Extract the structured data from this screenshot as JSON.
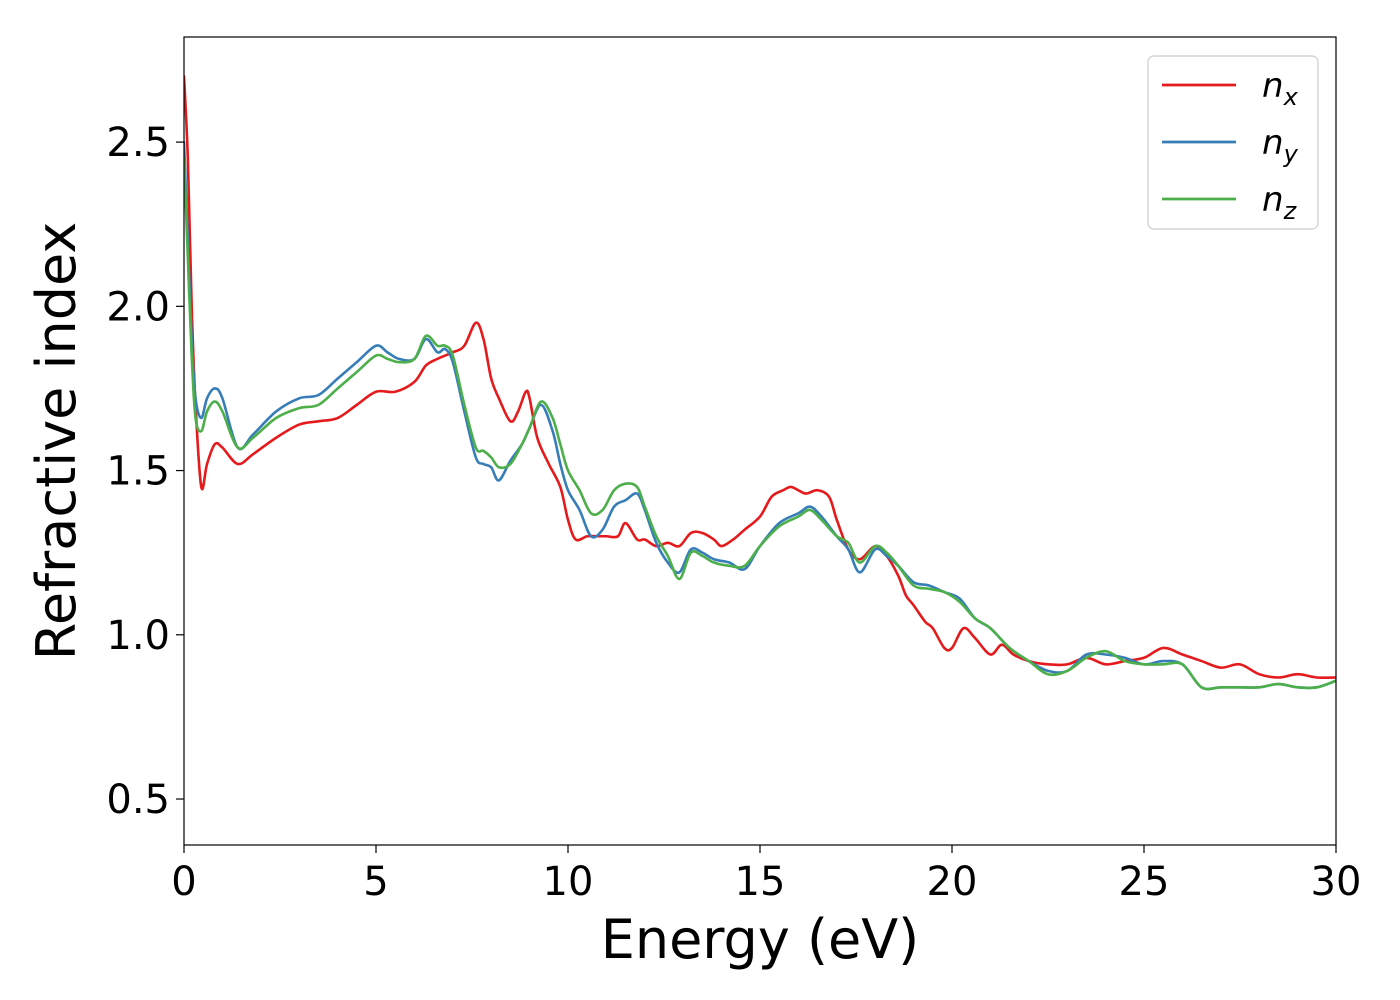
{
  "chart_data": {
    "type": "line",
    "xlabel": "Energy (eV)",
    "ylabel": "Refractive index",
    "xlim": [
      0,
      30
    ],
    "ylim": [
      0.36,
      2.82
    ],
    "xticks": [
      0,
      5,
      10,
      15,
      20,
      25,
      30
    ],
    "yticks": [
      0.5,
      1.0,
      1.5,
      2.0,
      2.5
    ],
    "xtick_labels": [
      "0",
      "5",
      "10",
      "15",
      "20",
      "25",
      "30"
    ],
    "ytick_labels": [
      "0.5",
      "1.0",
      "1.5",
      "2.0",
      "2.5"
    ],
    "grid": false,
    "legend_position": "top-right",
    "series": [
      {
        "name": "n",
        "subscript": "x",
        "color": "#e41a1c",
        "x": [
          0,
          0.1,
          0.2,
          0.3,
          0.45,
          0.6,
          0.8,
          1.0,
          1.4,
          1.8,
          2.4,
          3.0,
          3.5,
          4.0,
          4.5,
          5.0,
          5.5,
          6.0,
          6.3,
          6.6,
          7.0,
          7.3,
          7.6,
          7.8,
          8.0,
          8.2,
          8.5,
          8.7,
          8.9,
          9.0,
          9.2,
          9.5,
          9.8,
          10.0,
          10.2,
          10.5,
          10.8,
          11.0,
          11.3,
          11.5,
          11.8,
          12.0,
          12.3,
          12.6,
          12.9,
          13.2,
          13.5,
          13.8,
          14.0,
          14.3,
          14.6,
          15.0,
          15.3,
          15.6,
          15.8,
          16.0,
          16.2,
          16.5,
          16.8,
          17.0,
          17.3,
          17.6,
          18.0,
          18.3,
          18.6,
          18.8,
          19.0,
          19.3,
          19.5,
          19.8,
          20.0,
          20.3,
          20.6,
          21.0,
          21.3,
          21.6,
          22.0,
          22.5,
          23.0,
          23.5,
          24.0,
          24.5,
          25.0,
          25.5,
          26.0,
          26.5,
          27.0,
          27.5,
          28.0,
          28.5,
          29.0,
          29.5,
          30.0
        ],
        "y": [
          2.7,
          2.45,
          2.0,
          1.7,
          1.45,
          1.52,
          1.58,
          1.57,
          1.52,
          1.55,
          1.6,
          1.64,
          1.65,
          1.66,
          1.7,
          1.74,
          1.74,
          1.77,
          1.82,
          1.84,
          1.86,
          1.88,
          1.95,
          1.9,
          1.78,
          1.72,
          1.65,
          1.68,
          1.74,
          1.72,
          1.6,
          1.52,
          1.45,
          1.35,
          1.29,
          1.3,
          1.3,
          1.3,
          1.3,
          1.34,
          1.29,
          1.29,
          1.27,
          1.28,
          1.27,
          1.31,
          1.31,
          1.29,
          1.27,
          1.29,
          1.32,
          1.36,
          1.42,
          1.44,
          1.45,
          1.44,
          1.43,
          1.44,
          1.42,
          1.35,
          1.26,
          1.23,
          1.27,
          1.24,
          1.18,
          1.12,
          1.09,
          1.04,
          1.02,
          0.96,
          0.96,
          1.02,
          0.99,
          0.94,
          0.97,
          0.94,
          0.92,
          0.91,
          0.91,
          0.93,
          0.91,
          0.92,
          0.93,
          0.96,
          0.94,
          0.92,
          0.9,
          0.91,
          0.88,
          0.87,
          0.88,
          0.87,
          0.87
        ]
      },
      {
        "name": "n",
        "subscript": "y",
        "color": "#377eb8",
        "x": [
          0,
          0.1,
          0.2,
          0.3,
          0.45,
          0.6,
          0.8,
          1.0,
          1.4,
          1.8,
          2.4,
          3.0,
          3.5,
          4.0,
          4.5,
          5.0,
          5.3,
          5.6,
          6.0,
          6.3,
          6.6,
          6.8,
          7.0,
          7.3,
          7.6,
          7.8,
          8.0,
          8.2,
          8.5,
          8.8,
          9.0,
          9.3,
          9.6,
          9.8,
          10.0,
          10.3,
          10.6,
          10.9,
          11.2,
          11.5,
          11.8,
          12.0,
          12.3,
          12.6,
          12.9,
          13.2,
          13.5,
          13.8,
          14.2,
          14.6,
          15.0,
          15.5,
          16.0,
          16.3,
          16.6,
          17.0,
          17.3,
          17.6,
          18.0,
          18.3,
          18.6,
          19.0,
          19.4,
          19.8,
          20.2,
          20.6,
          21.0,
          21.5,
          22.0,
          22.5,
          23.0,
          23.5,
          24.0,
          24.5,
          25.0,
          25.5,
          26.0,
          26.5,
          27.0,
          27.5,
          28.0,
          28.5,
          29.0,
          29.5,
          30.0
        ],
        "y": [
          2.5,
          2.2,
          1.9,
          1.72,
          1.66,
          1.72,
          1.75,
          1.72,
          1.57,
          1.61,
          1.68,
          1.72,
          1.73,
          1.78,
          1.83,
          1.88,
          1.86,
          1.84,
          1.84,
          1.9,
          1.86,
          1.87,
          1.83,
          1.68,
          1.54,
          1.52,
          1.51,
          1.47,
          1.53,
          1.58,
          1.63,
          1.7,
          1.62,
          1.52,
          1.44,
          1.38,
          1.3,
          1.32,
          1.39,
          1.41,
          1.43,
          1.38,
          1.28,
          1.22,
          1.19,
          1.26,
          1.25,
          1.23,
          1.22,
          1.2,
          1.27,
          1.34,
          1.37,
          1.39,
          1.36,
          1.3,
          1.26,
          1.19,
          1.26,
          1.24,
          1.21,
          1.16,
          1.15,
          1.13,
          1.11,
          1.05,
          1.02,
          0.96,
          0.92,
          0.89,
          0.89,
          0.94,
          0.94,
          0.93,
          0.91,
          0.92,
          0.91,
          0.84,
          0.84,
          0.84,
          0.84,
          0.85,
          0.84,
          0.84,
          0.86
        ]
      },
      {
        "name": "n",
        "subscript": "z",
        "color": "#4daf4a",
        "x": [
          0,
          0.1,
          0.2,
          0.3,
          0.45,
          0.6,
          0.8,
          1.0,
          1.4,
          1.8,
          2.4,
          3.0,
          3.5,
          4.0,
          4.5,
          5.0,
          5.3,
          5.6,
          6.0,
          6.3,
          6.6,
          6.8,
          7.0,
          7.3,
          7.6,
          7.8,
          8.0,
          8.2,
          8.5,
          8.8,
          9.0,
          9.3,
          9.6,
          9.8,
          10.0,
          10.3,
          10.6,
          10.9,
          11.2,
          11.5,
          11.8,
          12.0,
          12.3,
          12.6,
          12.9,
          13.2,
          13.5,
          13.8,
          14.2,
          14.6,
          15.0,
          15.5,
          16.0,
          16.3,
          16.6,
          17.0,
          17.3,
          17.6,
          18.0,
          18.3,
          18.6,
          19.0,
          19.4,
          19.8,
          20.2,
          20.6,
          21.0,
          21.5,
          22.0,
          22.5,
          23.0,
          23.5,
          24.0,
          24.5,
          25.0,
          25.5,
          26.0,
          26.5,
          27.0,
          27.5,
          28.0,
          28.5,
          29.0,
          29.5,
          30.0
        ],
        "y": [
          2.45,
          2.15,
          1.85,
          1.66,
          1.62,
          1.68,
          1.71,
          1.68,
          1.57,
          1.6,
          1.66,
          1.69,
          1.7,
          1.75,
          1.8,
          1.85,
          1.84,
          1.83,
          1.84,
          1.91,
          1.88,
          1.88,
          1.85,
          1.7,
          1.57,
          1.56,
          1.54,
          1.51,
          1.52,
          1.58,
          1.63,
          1.71,
          1.66,
          1.58,
          1.5,
          1.44,
          1.37,
          1.38,
          1.44,
          1.46,
          1.45,
          1.39,
          1.3,
          1.24,
          1.17,
          1.25,
          1.24,
          1.22,
          1.21,
          1.21,
          1.27,
          1.33,
          1.36,
          1.38,
          1.35,
          1.3,
          1.28,
          1.22,
          1.27,
          1.25,
          1.21,
          1.15,
          1.14,
          1.13,
          1.1,
          1.05,
          1.02,
          0.96,
          0.92,
          0.88,
          0.89,
          0.93,
          0.95,
          0.92,
          0.91,
          0.91,
          0.91,
          0.84,
          0.84,
          0.84,
          0.84,
          0.85,
          0.84,
          0.84,
          0.86
        ]
      }
    ]
  }
}
